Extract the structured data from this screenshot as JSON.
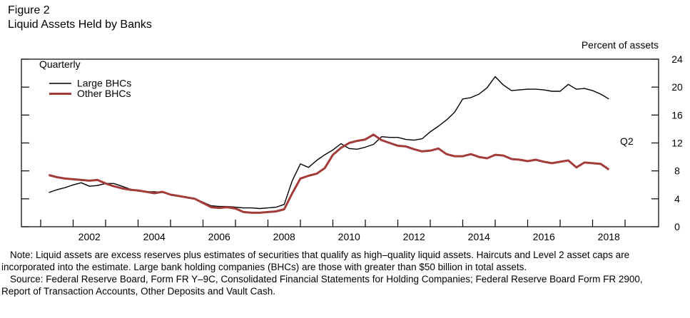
{
  "figure": {
    "label": "Figure 2",
    "title": "Liquid Assets Held by Banks",
    "frequency_label": "Quarterly",
    "unit_label": "Percent of assets",
    "end_annotation": "Q2"
  },
  "chart_data": {
    "type": "line",
    "title": "Liquid Assets Held by Banks",
    "frequency": "Quarterly",
    "unit": "Percent of assets",
    "x_start_label": "2001Q1",
    "x_end_label": "2018Q2",
    "end_annotation": "Q2",
    "x0": 2001.25,
    "dx": 0.25,
    "ylim": [
      0,
      24
    ],
    "yticks": [
      0,
      4,
      8,
      12,
      16,
      20,
      24
    ],
    "x_ticks": [
      2001,
      2002,
      2003,
      2004,
      2005,
      2006,
      2007,
      2008,
      2009,
      2010,
      2011,
      2012,
      2013,
      2014,
      2015,
      2016,
      2017,
      2018,
      2019
    ],
    "x_labels": [
      2002,
      2004,
      2006,
      2008,
      2010,
      2012,
      2014,
      2016,
      2018
    ],
    "grid": false,
    "legend_position": "top-left-inside",
    "series": [
      {
        "name": "Large BHCs",
        "color": "#000000",
        "stroke_width": 1.4,
        "values": [
          4.9,
          5.3,
          5.6,
          6.0,
          6.3,
          5.8,
          5.9,
          6.2,
          6.2,
          5.8,
          5.4,
          5.1,
          5.0,
          5.0,
          4.9,
          4.6,
          4.4,
          4.2,
          4.0,
          3.5,
          3.0,
          2.9,
          2.9,
          2.8,
          2.7,
          2.7,
          2.6,
          2.7,
          2.8,
          3.2,
          6.6,
          9.0,
          8.5,
          9.5,
          10.3,
          11.0,
          11.9,
          11.2,
          11.1,
          11.4,
          11.8,
          12.9,
          12.8,
          12.8,
          12.5,
          12.4,
          12.6,
          13.6,
          14.4,
          15.3,
          16.4,
          18.3,
          18.5,
          19.0,
          19.9,
          21.5,
          20.3,
          19.5,
          19.6,
          19.7,
          19.7,
          19.6,
          19.4,
          19.4,
          20.4,
          19.7,
          19.8,
          19.5,
          19.0,
          18.3
        ]
      },
      {
        "name": "Other BHCs",
        "color": "#a23b3a",
        "stroke_width": 3,
        "values": [
          7.4,
          7.1,
          6.9,
          6.8,
          6.7,
          6.6,
          6.7,
          6.2,
          5.8,
          5.5,
          5.3,
          5.2,
          5.0,
          4.8,
          5.0,
          4.6,
          4.4,
          4.2,
          4.0,
          3.4,
          2.8,
          2.7,
          2.8,
          2.6,
          2.1,
          2.0,
          2.0,
          2.1,
          2.2,
          2.5,
          4.8,
          6.9,
          7.3,
          7.6,
          8.4,
          10.3,
          11.3,
          12.0,
          12.3,
          12.5,
          13.2,
          12.4,
          12.0,
          11.6,
          11.5,
          11.1,
          10.8,
          10.9,
          11.2,
          10.4,
          10.1,
          10.1,
          10.4,
          10.0,
          9.8,
          10.3,
          10.2,
          9.7,
          9.6,
          9.4,
          9.6,
          9.3,
          9.1,
          9.3,
          9.5,
          8.5,
          9.2,
          9.1,
          9.0,
          8.2
        ]
      }
    ]
  },
  "notes": {
    "note": "Note: Liquid assets are excess reserves plus estimates of securities that qualify as high–quality liquid assets. Haircuts and Level 2 asset caps are incorporated into the estimate. Large bank holding companies (BHCs) are those with greater than $50 billion in total assets.",
    "source": "Source: Federal Reserve Board, Form FR Y–9C, Consolidated Financial Statements for Holding Companies; Federal Reserve Board Form FR 2900, Report of Transaction Accounts, Other Deposits and Vault Cash."
  }
}
